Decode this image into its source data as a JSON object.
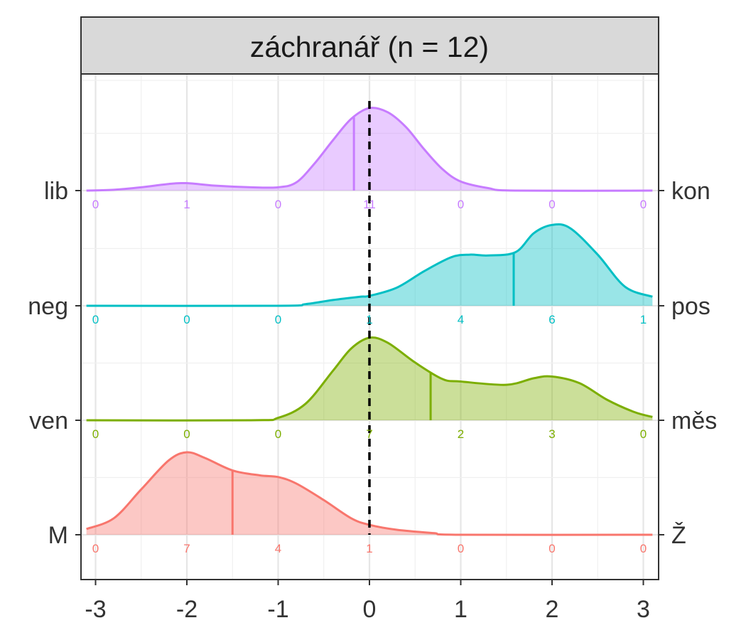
{
  "chart_data": {
    "type": "ridgeline",
    "facet_title": "záchranář (n = 12)",
    "xlim": [
      -3,
      3
    ],
    "x_ticks": [
      "-3",
      "-2",
      "-1",
      "0",
      "1",
      "2",
      "3"
    ],
    "x_tick_values": [
      -3,
      -2,
      -1,
      0,
      1,
      2,
      3
    ],
    "reference_line_x": 0,
    "grid": true,
    "series": [
      {
        "left_label": "M",
        "right_label": "Ž",
        "color": "#F8766D",
        "counts": [
          "0",
          "7",
          "4",
          "1",
          "0",
          "0",
          "0"
        ],
        "count_values": [
          0,
          7,
          4,
          1,
          0,
          0,
          0
        ],
        "mean": -1.5,
        "density": [
          [
            -3.1,
            0.07
          ],
          [
            -2.8,
            0.2
          ],
          [
            -2.5,
            0.55
          ],
          [
            -2.2,
            0.9
          ],
          [
            -2.0,
            1.0
          ],
          [
            -1.8,
            0.93
          ],
          [
            -1.5,
            0.78
          ],
          [
            -1.2,
            0.72
          ],
          [
            -1.0,
            0.7
          ],
          [
            -0.8,
            0.62
          ],
          [
            -0.5,
            0.42
          ],
          [
            -0.2,
            0.2
          ],
          [
            0,
            0.12
          ],
          [
            0.3,
            0.06
          ],
          [
            0.7,
            0.02
          ],
          [
            1.0,
            0.0
          ],
          [
            3.1,
            0.0
          ]
        ]
      },
      {
        "left_label": "ven",
        "right_label": "měs",
        "color": "#7CAE00",
        "counts": [
          "0",
          "0",
          "0",
          "7",
          "2",
          "3",
          "0"
        ],
        "count_values": [
          0,
          0,
          0,
          7,
          2,
          3,
          0
        ],
        "mean": 0.67,
        "density": [
          [
            -3.1,
            0.0
          ],
          [
            -1.3,
            0.0
          ],
          [
            -1.0,
            0.03
          ],
          [
            -0.7,
            0.2
          ],
          [
            -0.4,
            0.6
          ],
          [
            -0.2,
            0.87
          ],
          [
            0,
            1.0
          ],
          [
            0.2,
            0.94
          ],
          [
            0.5,
            0.7
          ],
          [
            0.8,
            0.5
          ],
          [
            1.0,
            0.47
          ],
          [
            1.5,
            0.43
          ],
          [
            1.8,
            0.51
          ],
          [
            2.0,
            0.53
          ],
          [
            2.3,
            0.45
          ],
          [
            2.6,
            0.25
          ],
          [
            2.9,
            0.1
          ],
          [
            3.1,
            0.04
          ]
        ]
      },
      {
        "left_label": "neg",
        "right_label": "pos",
        "color": "#00BFC4",
        "counts": [
          "0",
          "0",
          "0",
          "1",
          "4",
          "6",
          "1"
        ],
        "count_values": [
          0,
          0,
          0,
          1,
          4,
          6,
          1
        ],
        "mean": 1.58,
        "density": [
          [
            -3.1,
            0.0
          ],
          [
            -1.0,
            0.0
          ],
          [
            -0.7,
            0.02
          ],
          [
            -0.4,
            0.07
          ],
          [
            -0.1,
            0.11
          ],
          [
            0,
            0.12
          ],
          [
            0.3,
            0.22
          ],
          [
            0.6,
            0.42
          ],
          [
            0.9,
            0.59
          ],
          [
            1.1,
            0.62
          ],
          [
            1.3,
            0.61
          ],
          [
            1.6,
            0.65
          ],
          [
            1.8,
            0.88
          ],
          [
            2.0,
            0.98
          ],
          [
            2.2,
            0.94
          ],
          [
            2.5,
            0.62
          ],
          [
            2.8,
            0.23
          ],
          [
            3.1,
            0.11
          ]
        ]
      },
      {
        "left_label": "lib",
        "right_label": "kon",
        "color": "#C77CFF",
        "counts": [
          "0",
          "1",
          "0",
          "11",
          "0",
          "0",
          "0"
        ],
        "count_values": [
          0,
          1,
          0,
          11,
          0,
          0,
          0
        ],
        "mean": -0.17,
        "density": [
          [
            -3.1,
            0.0
          ],
          [
            -2.8,
            0.01
          ],
          [
            -2.5,
            0.04
          ],
          [
            -2.2,
            0.08
          ],
          [
            -2.0,
            0.09
          ],
          [
            -1.7,
            0.06
          ],
          [
            -1.3,
            0.04
          ],
          [
            -1.0,
            0.04
          ],
          [
            -0.8,
            0.1
          ],
          [
            -0.6,
            0.33
          ],
          [
            -0.4,
            0.61
          ],
          [
            -0.2,
            0.87
          ],
          [
            0,
            1.0
          ],
          [
            0.2,
            0.95
          ],
          [
            0.4,
            0.77
          ],
          [
            0.6,
            0.5
          ],
          [
            0.8,
            0.26
          ],
          [
            1.0,
            0.11
          ],
          [
            1.3,
            0.03
          ],
          [
            1.6,
            0.0
          ],
          [
            3.1,
            0.0
          ]
        ]
      }
    ]
  }
}
